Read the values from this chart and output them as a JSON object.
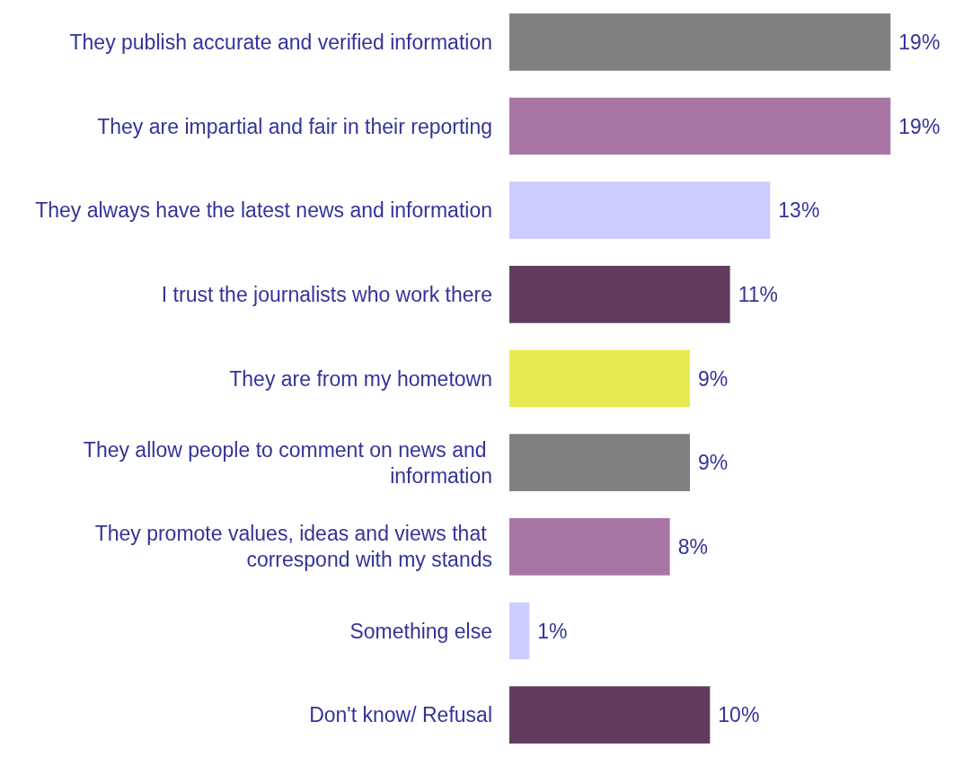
{
  "chart_data": {
    "type": "bar",
    "orientation": "horizontal",
    "categories": [
      "They publish accurate and verified information",
      "They are impartial and fair in their reporting",
      "They always have the latest news and information",
      "I trust the journalists who work there",
      "They are from my hometown",
      "They allow people to comment on news and information",
      "They promote values, ideas and views that correspond with my stands",
      "Something else",
      "Don't know/ Refusal"
    ],
    "values": [
      19,
      19,
      13,
      11,
      9,
      9,
      8,
      1,
      10
    ],
    "value_labels": [
      "19%",
      "19%",
      "13%",
      "11%",
      "9%",
      "9%",
      "8%",
      "1%",
      "10%"
    ],
    "colors": [
      "#808080",
      "#a975a5",
      "#ccccff",
      "#613c5e",
      "#e8eb4f",
      "#808080",
      "#a975a5",
      "#ccccff",
      "#613c5e"
    ]
  }
}
